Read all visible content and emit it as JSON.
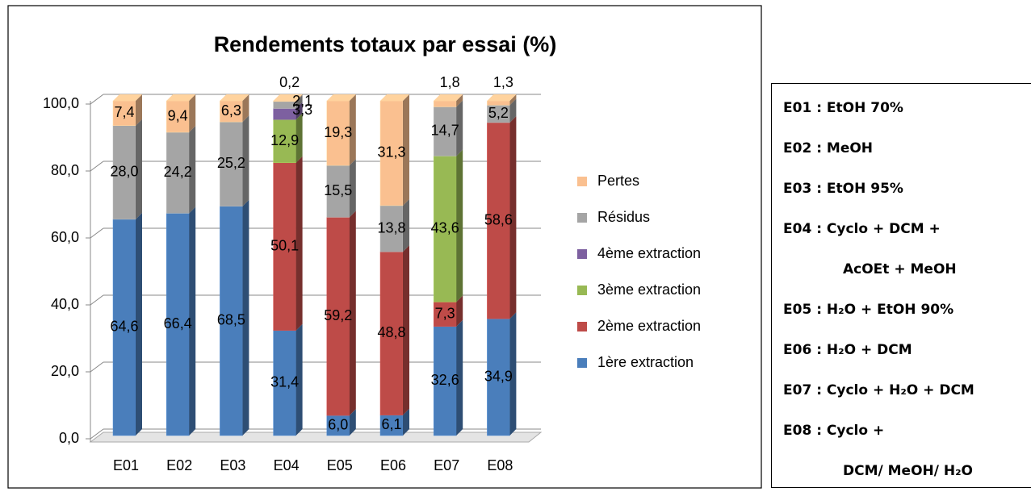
{
  "chart_data": {
    "type": "bar3d-stacked",
    "title": "Rendements totaux par essai (%)",
    "categories": [
      "E01",
      "E02",
      "E03",
      "E04",
      "E05",
      "E06",
      "E07",
      "E08"
    ],
    "ylim": [
      0,
      100
    ],
    "yticks": [
      {
        "value": 0,
        "label": "0,0"
      },
      {
        "value": 20,
        "label": "20,0"
      },
      {
        "value": 40,
        "label": "40,0"
      },
      {
        "value": 60,
        "label": "60,0"
      },
      {
        "value": 80,
        "label": "80,0"
      },
      {
        "value": 100,
        "label": "100,0"
      }
    ],
    "grid": true,
    "legend": "right",
    "series": [
      {
        "name": "1ère extraction",
        "color": "#4a7ebb",
        "values": [
          64.6,
          66.4,
          68.5,
          31.4,
          6.0,
          6.1,
          32.6,
          34.9
        ],
        "value_labels": [
          "64,6",
          "66,4",
          "68,5",
          "31,4",
          "6,0",
          "6,1",
          "32,6",
          "34,9"
        ]
      },
      {
        "name": "2ème extraction",
        "color": "#be4b48",
        "values": [
          null,
          null,
          null,
          50.1,
          59.2,
          48.8,
          7.3,
          58.6
        ],
        "value_labels": [
          null,
          null,
          null,
          "50,1",
          "59,2",
          "48,8",
          "7,3",
          "58,6"
        ]
      },
      {
        "name": "3ème extraction",
        "color": "#98b954",
        "values": [
          null,
          null,
          null,
          12.9,
          null,
          null,
          43.6,
          null
        ],
        "value_labels": [
          null,
          null,
          null,
          "12,9",
          null,
          null,
          "43,6",
          null
        ]
      },
      {
        "name": "4ème extraction",
        "color": "#7d60a0",
        "values": [
          null,
          null,
          null,
          3.3,
          null,
          null,
          null,
          null
        ],
        "value_labels": [
          null,
          null,
          null,
          "3,3",
          null,
          null,
          null,
          null
        ]
      },
      {
        "name": "Résidus",
        "color": "#a5a5a5",
        "values": [
          28.0,
          24.2,
          25.2,
          2.1,
          15.5,
          13.8,
          14.7,
          5.2
        ],
        "value_labels": [
          "28,0",
          "24,2",
          "25,2",
          "2,1",
          "15,5",
          "13,8",
          "14,7",
          "5,2"
        ]
      },
      {
        "name": "Pertes",
        "color": "#fac090",
        "values": [
          7.4,
          9.4,
          6.3,
          0.2,
          19.3,
          31.3,
          1.8,
          1.3
        ],
        "value_labels": [
          "7,4",
          "9,4",
          "6,3",
          "0,2",
          "19,3",
          "31,3",
          "1,8",
          "1,3"
        ]
      }
    ]
  },
  "solvent_box": {
    "lines": [
      "E01 : EtOH 70%",
      "E02 : MeOH",
      "E03 : EtOH 95%",
      "E04 : Cyclo + DCM +",
      "AcOEt + MeOH",
      "E05 : H₂O + EtOH 90%",
      "E06 : H₂O + DCM",
      "E07 : Cyclo + H₂O + DCM",
      "E08 : Cyclo +",
      "DCM/ MeOH/ H₂O"
    ]
  }
}
